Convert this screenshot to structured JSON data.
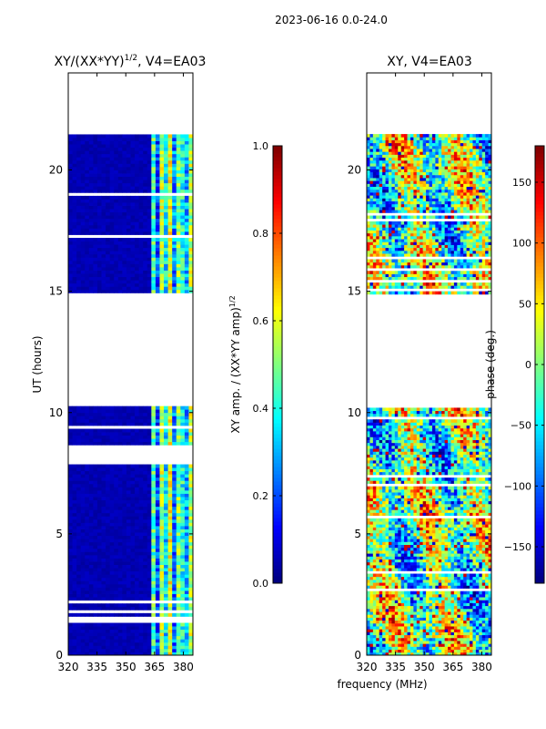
{
  "suptitle": "2023-06-16 0.0-24.0",
  "shared_xlabel": "frequency (MHz)",
  "colors": {
    "masked_white": "#ffffff",
    "axis": "#000000",
    "jet": [
      "#00007f",
      "#0000ff",
      "#007fff",
      "#00ffff",
      "#7fff7f",
      "#ffff00",
      "#ff7f00",
      "#ff0000",
      "#7f0000"
    ]
  },
  "chart_data": [
    {
      "type": "heatmap",
      "title_main": "XY/(XX*YY)",
      "title_exp": "1/2",
      "title_tail": ", V4=EA03",
      "xlabel": "",
      "ylabel": "UT (hours)",
      "xlim": [
        320,
        385
      ],
      "ylim": [
        0,
        24
      ],
      "xticks": [
        320,
        335,
        350,
        365,
        380
      ],
      "yticks": [
        0,
        5,
        10,
        15,
        20
      ],
      "data_hours": [
        [
          0,
          1.3
        ],
        [
          1.5,
          7.8
        ],
        [
          8.6,
          10.2
        ],
        [
          14.8,
          21.4
        ]
      ],
      "description": "Mostly low amplitude (~0.05) below 362 MHz; higher amplitude (0.2-0.7) striping at 362-382 MHz",
      "colorbar": {
        "label_main": "XY amp. / (XX*YY amp)",
        "label_exp": "1/2",
        "range": [
          0.0,
          1.0
        ],
        "ticks": [
          0.0,
          0.2,
          0.4,
          0.6,
          0.8,
          1.0
        ],
        "tick_labels": [
          "0.0",
          "0.2",
          "0.4",
          "0.6",
          "0.8",
          "1.0"
        ]
      }
    },
    {
      "type": "heatmap",
      "title_main": "XY, V4=EA03",
      "xlabel": "frequency (MHz)",
      "ylabel": "",
      "xlim": [
        320,
        385
      ],
      "ylim": [
        0,
        24
      ],
      "xticks": [
        320,
        335,
        350,
        365,
        380
      ],
      "yticks": [
        0,
        5,
        10,
        15,
        20
      ],
      "data_hours": [
        [
          0,
          10.2
        ],
        [
          14.8,
          21.4
        ]
      ],
      "description": "Phase values scattered across -180..180 deg, noisy structure",
      "colorbar": {
        "label_main": "phase (deg.)",
        "range": [
          -180,
          180
        ],
        "ticks": [
          -150,
          -100,
          -50,
          0,
          50,
          100,
          150
        ],
        "tick_labels": [
          "−150",
          "−100",
          "−50",
          "0",
          "50",
          "100",
          "150"
        ]
      }
    }
  ]
}
